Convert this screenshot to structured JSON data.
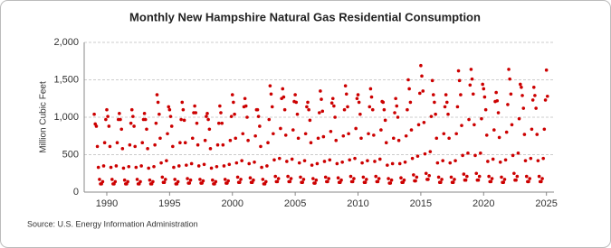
{
  "chart_data": {
    "type": "scatter",
    "title": "Monthly New Hampshire Natural Gas Residential Consumption",
    "y_label": "Million Cubic Feet",
    "source": "Source: U.S. Energy Information Administration",
    "color": "#cc0000",
    "grid": true,
    "xlim": [
      1988.2,
      2025.6
    ],
    "xticks": [
      1990,
      1995,
      2000,
      2005,
      2010,
      2015,
      2020,
      2025
    ],
    "ylim": [
      0,
      2000
    ],
    "yticks": [
      0,
      500,
      {
        "value": 1000,
        "label": "1,000"
      },
      {
        "value": 1500,
        "label": "1,500"
      },
      {
        "value": 2000,
        "label": "2,000"
      }
    ],
    "x": [
      1989,
      1989.08,
      1989.17,
      1989.25,
      1989.33,
      1989.42,
      1989.5,
      1989.58,
      1989.67,
      1989.75,
      1989.83,
      1989.92,
      1990,
      1990.08,
      1990.17,
      1990.25,
      1990.33,
      1990.42,
      1990.5,
      1990.58,
      1990.67,
      1990.75,
      1990.83,
      1990.92,
      1991,
      1991.08,
      1991.17,
      1991.25,
      1991.33,
      1991.42,
      1991.5,
      1991.58,
      1991.67,
      1991.75,
      1991.83,
      1991.92,
      1992,
      1992.08,
      1992.17,
      1992.25,
      1992.33,
      1992.42,
      1992.5,
      1992.58,
      1992.67,
      1992.75,
      1992.83,
      1992.92,
      1993,
      1993.08,
      1993.17,
      1993.25,
      1993.33,
      1993.42,
      1993.5,
      1993.58,
      1993.67,
      1993.75,
      1993.83,
      1993.92,
      1994,
      1994.08,
      1994.17,
      1994.25,
      1994.33,
      1994.42,
      1994.5,
      1994.58,
      1994.67,
      1994.75,
      1994.83,
      1994.92,
      1995,
      1995.08,
      1995.17,
      1995.25,
      1995.33,
      1995.42,
      1995.5,
      1995.58,
      1995.67,
      1995.75,
      1995.83,
      1995.92,
      1996,
      1996.08,
      1996.17,
      1996.25,
      1996.33,
      1996.42,
      1996.5,
      1996.58,
      1996.67,
      1996.75,
      1996.83,
      1996.92,
      1997,
      1997.08,
      1997.17,
      1997.25,
      1997.33,
      1997.42,
      1997.5,
      1997.58,
      1997.67,
      1997.75,
      1997.83,
      1997.92,
      1998,
      1998.08,
      1998.17,
      1998.25,
      1998.33,
      1998.42,
      1998.5,
      1998.58,
      1998.67,
      1998.75,
      1998.83,
      1998.92,
      1999,
      1999.08,
      1999.17,
      1999.25,
      1999.33,
      1999.42,
      1999.5,
      1999.58,
      1999.67,
      1999.75,
      1999.83,
      1999.92,
      2000,
      2000.08,
      2000.17,
      2000.25,
      2000.33,
      2000.42,
      2000.5,
      2000.58,
      2000.67,
      2000.75,
      2000.83,
      2000.92,
      2001,
      2001.08,
      2001.17,
      2001.25,
      2001.33,
      2001.42,
      2001.5,
      2001.58,
      2001.67,
      2001.75,
      2001.83,
      2001.92,
      2002,
      2002.08,
      2002.17,
      2002.25,
      2002.33,
      2002.42,
      2002.5,
      2002.58,
      2002.67,
      2002.75,
      2002.83,
      2002.92,
      2003,
      2003.08,
      2003.17,
      2003.25,
      2003.33,
      2003.42,
      2003.5,
      2003.58,
      2003.67,
      2003.75,
      2003.83,
      2003.92,
      2004,
      2004.08,
      2004.17,
      2004.25,
      2004.33,
      2004.42,
      2004.5,
      2004.58,
      2004.67,
      2004.75,
      2004.83,
      2004.92,
      2005,
      2005.08,
      2005.17,
      2005.25,
      2005.33,
      2005.42,
      2005.5,
      2005.58,
      2005.67,
      2005.75,
      2005.83,
      2005.92,
      2006,
      2006.08,
      2006.17,
      2006.25,
      2006.33,
      2006.42,
      2006.5,
      2006.58,
      2006.67,
      2006.75,
      2006.83,
      2006.92,
      2007,
      2007.08,
      2007.17,
      2007.25,
      2007.33,
      2007.42,
      2007.5,
      2007.58,
      2007.67,
      2007.75,
      2007.83,
      2007.92,
      2008,
      2008.08,
      2008.17,
      2008.25,
      2008.33,
      2008.42,
      2008.5,
      2008.58,
      2008.67,
      2008.75,
      2008.83,
      2008.92,
      2009,
      2009.08,
      2009.17,
      2009.25,
      2009.33,
      2009.42,
      2009.5,
      2009.58,
      2009.67,
      2009.75,
      2009.83,
      2009.92,
      2010,
      2010.08,
      2010.17,
      2010.25,
      2010.33,
      2010.42,
      2010.5,
      2010.58,
      2010.67,
      2010.75,
      2010.83,
      2010.92,
      2011,
      2011.08,
      2011.17,
      2011.25,
      2011.33,
      2011.42,
      2011.5,
      2011.58,
      2011.67,
      2011.75,
      2011.83,
      2011.92,
      2012,
      2012.08,
      2012.17,
      2012.25,
      2012.33,
      2012.42,
      2012.5,
      2012.58,
      2012.67,
      2012.75,
      2012.83,
      2012.92,
      2013,
      2013.08,
      2013.17,
      2013.25,
      2013.33,
      2013.42,
      2013.5,
      2013.58,
      2013.67,
      2013.75,
      2013.83,
      2013.92,
      2014,
      2014.08,
      2014.17,
      2014.25,
      2014.33,
      2014.42,
      2014.5,
      2014.58,
      2014.67,
      2014.75,
      2014.83,
      2014.92,
      2015,
      2015.08,
      2015.17,
      2015.25,
      2015.33,
      2015.42,
      2015.5,
      2015.58,
      2015.67,
      2015.75,
      2015.83,
      2015.92,
      2016,
      2016.08,
      2016.17,
      2016.25,
      2016.33,
      2016.42,
      2016.5,
      2016.58,
      2016.67,
      2016.75,
      2016.83,
      2016.92,
      2017,
      2017.08,
      2017.17,
      2017.25,
      2017.33,
      2017.42,
      2017.5,
      2017.58,
      2017.67,
      2017.75,
      2017.83,
      2017.92,
      2018,
      2018.08,
      2018.17,
      2018.25,
      2018.33,
      2018.42,
      2018.5,
      2018.58,
      2018.67,
      2018.75,
      2018.83,
      2018.92,
      2019,
      2019.08,
      2019.17,
      2019.25,
      2019.33,
      2019.42,
      2019.5,
      2019.58,
      2019.67,
      2019.75,
      2019.83,
      2019.92,
      2020,
      2020.08,
      2020.17,
      2020.25,
      2020.33,
      2020.42,
      2020.5,
      2020.58,
      2020.67,
      2020.75,
      2020.83,
      2020.92,
      2021,
      2021.08,
      2021.17,
      2021.25,
      2021.33,
      2021.42,
      2021.5,
      2021.58,
      2021.67,
      2021.75,
      2021.83,
      2021.92,
      2022,
      2022.08,
      2022.17,
      2022.25,
      2022.33,
      2022.42,
      2022.5,
      2022.58,
      2022.67,
      2022.75,
      2022.83,
      2022.92,
      2023,
      2023.08,
      2023.17,
      2023.25,
      2023.33,
      2023.42,
      2023.5,
      2023.58,
      2023.67,
      2023.75,
      2023.83,
      2023.92,
      2024,
      2024.08,
      2024.17,
      2024.25,
      2024.33,
      2024.42,
      2024.5,
      2024.58,
      2024.67,
      2024.75,
      2024.83,
      2024.92,
      2025,
      2025.08
    ],
    "values": [
      1040,
      910,
      880,
      610,
      330,
      170,
      110,
      110,
      140,
      350,
      660,
      970,
      1100,
      1010,
      880,
      610,
      330,
      170,
      110,
      110,
      140,
      350,
      660,
      970,
      1050,
      970,
      840,
      580,
      320,
      160,
      110,
      110,
      140,
      340,
      630,
      920,
      1100,
      1010,
      880,
      610,
      330,
      170,
      110,
      110,
      140,
      350,
      660,
      970,
      1050,
      970,
      840,
      580,
      320,
      160,
      110,
      110,
      140,
      340,
      630,
      920,
      1300,
      1200,
      1040,
      720,
      390,
      200,
      130,
      130,
      170,
      420,
      780,
      1140,
      1100,
      1010,
      880,
      610,
      330,
      170,
      110,
      110,
      140,
      350,
      660,
      970,
      1200,
      1100,
      960,
      660,
      360,
      180,
      120,
      120,
      160,
      380,
      720,
      1060,
      1150,
      1060,
      920,
      630,
      350,
      170,
      120,
      120,
      150,
      370,
      690,
      1010,
      1050,
      970,
      840,
      580,
      320,
      160,
      110,
      110,
      140,
      340,
      630,
      920,
      1150,
      1060,
      920,
      630,
      350,
      170,
      120,
      120,
      150,
      370,
      690,
      1010,
      1300,
      1200,
      1040,
      720,
      390,
      200,
      130,
      130,
      170,
      420,
      780,
      1140,
      1250,
      1150,
      1000,
      690,
      380,
      190,
      130,
      130,
      160,
      400,
      750,
      1100,
      1100,
      1010,
      880,
      610,
      330,
      170,
      110,
      110,
      140,
      350,
      660,
      970,
      1420,
      1310,
      1140,
      780,
      430,
      210,
      140,
      140,
      180,
      450,
      850,
      1250,
      1380,
      1270,
      1100,
      760,
      410,
      210,
      140,
      140,
      180,
      440,
      830,
      1210,
      1300,
      1200,
      1040,
      720,
      390,
      200,
      130,
      130,
      170,
      420,
      780,
      1140,
      1200,
      1100,
      960,
      660,
      360,
      180,
      120,
      120,
      160,
      380,
      720,
      1060,
      1350,
      1240,
      1080,
      740,
      410,
      200,
      140,
      140,
      180,
      430,
      810,
      1190,
      1250,
      1150,
      1000,
      690,
      380,
      190,
      130,
      130,
      160,
      400,
      750,
      1100,
      1420,
      1310,
      1140,
      780,
      430,
      210,
      140,
      140,
      180,
      450,
      850,
      1250,
      1300,
      1200,
      1040,
      720,
      390,
      200,
      130,
      130,
      170,
      420,
      780,
      1140,
      1380,
      1270,
      1100,
      760,
      410,
      210,
      140,
      140,
      180,
      440,
      830,
      1210,
      1200,
      1100,
      960,
      660,
      360,
      180,
      120,
      120,
      160,
      380,
      720,
      1060,
      1250,
      1150,
      1000,
      690,
      380,
      190,
      130,
      130,
      160,
      400,
      750,
      1100,
      1500,
      1380,
      1200,
      830,
      450,
      230,
      150,
      150,
      200,
      480,
      900,
      1320,
      1690,
      1550,
      1350,
      930,
      510,
      250,
      170,
      170,
      220,
      540,
      1010,
      1490,
      1300,
      1200,
      1040,
      720,
      390,
      200,
      130,
      130,
      170,
      420,
      780,
      1140,
      1300,
      1200,
      1040,
      720,
      390,
      200,
      130,
      130,
      170,
      420,
      780,
      1140,
      1620,
      1490,
      1300,
      890,
      490,
      240,
      160,
      160,
      210,
      520,
      970,
      1430,
      1640,
      1510,
      1310,
      900,
      490,
      250,
      160,
      160,
      210,
      520,
      980,
      1440,
      1380,
      1270,
      1100,
      760,
      410,
      210,
      140,
      140,
      180,
      440,
      830,
      1210,
      1330,
      1220,
      1060,
      730,
      400,
      200,
      130,
      130,
      170,
      430,
      800,
      1170,
      1640,
      1510,
      1310,
      900,
      490,
      250,
      160,
      160,
      210,
      520,
      980,
      1440,
      1400,
      1290,
      1120,
      770,
      420,
      210,
      140,
      140,
      180,
      450,
      840,
      1230,
      1400,
      1290,
      1120,
      770,
      420,
      210,
      140,
      140,
      180,
      450,
      840,
      1230,
      1630,
      1280
    ]
  }
}
